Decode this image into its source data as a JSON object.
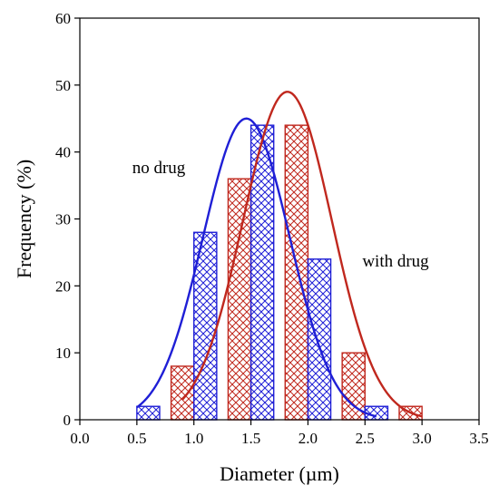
{
  "chart_data": {
    "type": "bar",
    "xlabel": "Diameter (µm)",
    "ylabel": "Frequency (%)",
    "xlim": [
      0,
      3.5
    ],
    "ylim": [
      0,
      60
    ],
    "x_ticks": [
      "0.0",
      "0.5",
      "1.0",
      "1.5",
      "2.0",
      "2.5",
      "3.0",
      "3.5"
    ],
    "y_ticks": [
      "0",
      "10",
      "20",
      "30",
      "40",
      "50",
      "60"
    ],
    "grid": false,
    "bin_width": 0.2,
    "series": [
      {
        "name": "no drug",
        "color": "#1f1fd6",
        "bin_centers": [
          0.6,
          1.1,
          1.6,
          2.1,
          2.6
        ],
        "values": [
          2,
          28,
          44,
          24,
          2
        ],
        "fit_curve": {
          "type": "gaussian",
          "mean": 1.46,
          "sd": 0.38,
          "peak": 45,
          "x_range": [
            0.5,
            2.6
          ]
        }
      },
      {
        "name": "with drug",
        "color": "#c0281e",
        "bin_centers": [
          0.9,
          1.4,
          1.9,
          2.4,
          2.9
        ],
        "values": [
          8,
          36,
          44,
          10,
          2
        ],
        "fit_curve": {
          "type": "gaussian",
          "mean": 1.82,
          "sd": 0.39,
          "peak": 49,
          "x_range": [
            0.9,
            3.0
          ]
        }
      }
    ],
    "annotations": [
      {
        "text": "no drug",
        "series": "no drug"
      },
      {
        "text": "with drug",
        "series": "with drug"
      }
    ]
  }
}
